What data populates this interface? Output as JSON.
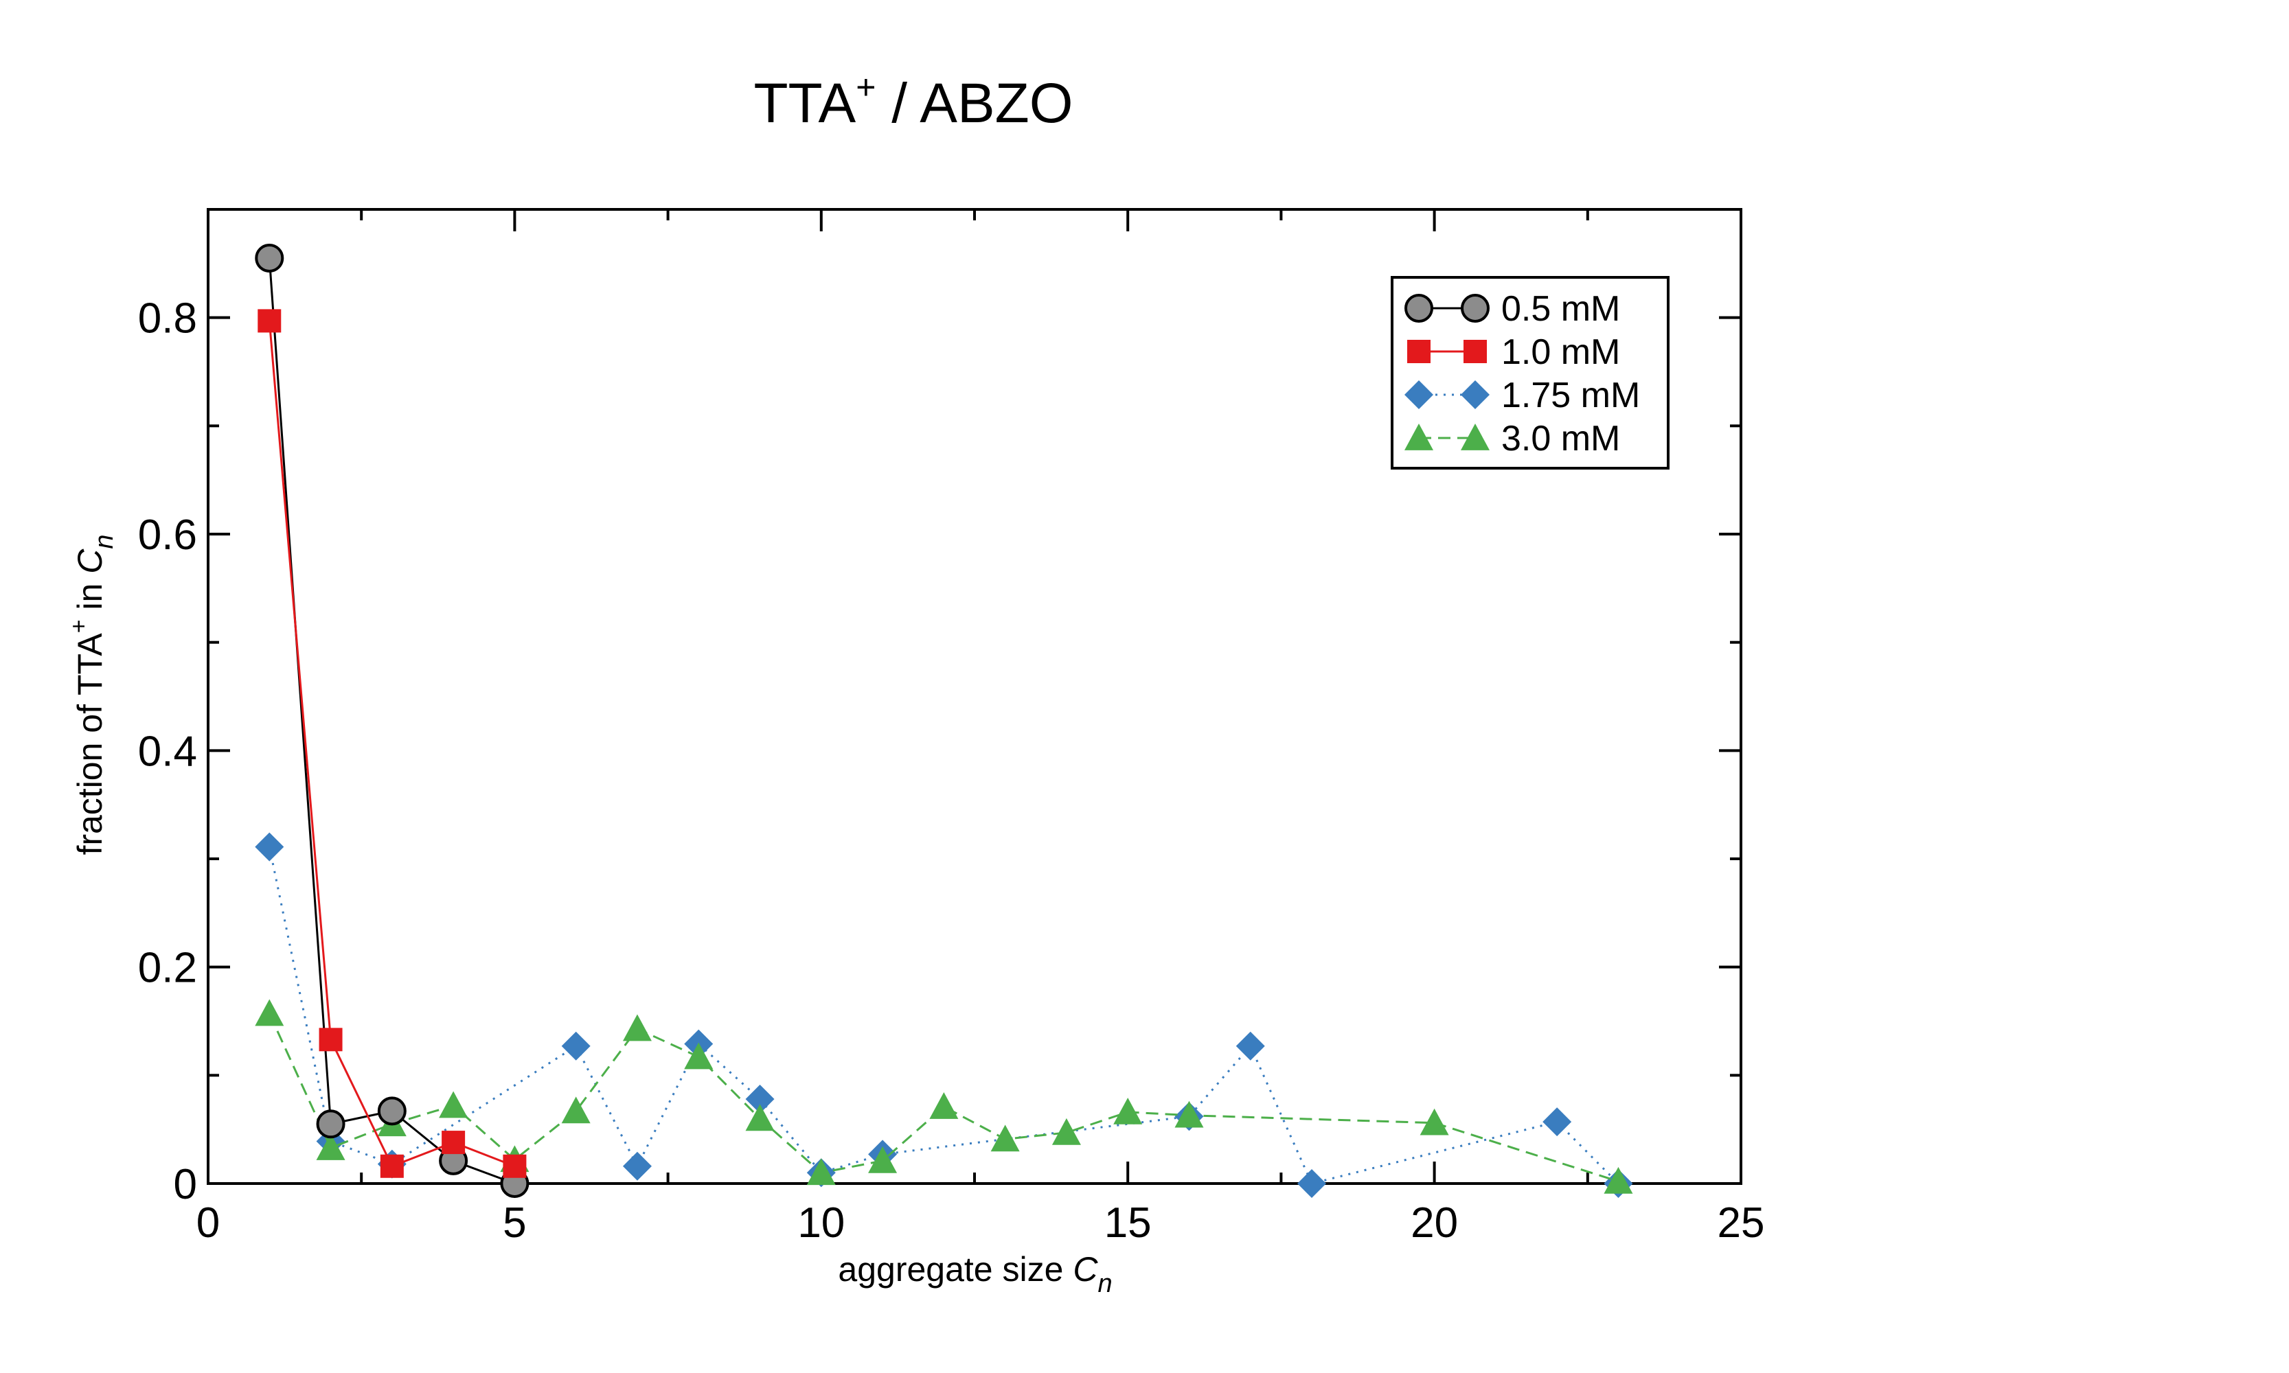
{
  "chart_data": {
    "type": "line",
    "title": "TTA",
    "title_sup": "+",
    "title_suffix": " / ABZO",
    "xlabel": "aggregate size ",
    "xlabel_var": "C",
    "xlabel_sub": "n",
    "ylabel": "fraction of TTA",
    "ylabel_sup": "+",
    "ylabel_mid": " in ",
    "ylabel_var": "C",
    "ylabel_sub": "n",
    "xlim": [
      0,
      25
    ],
    "ylim": [
      0,
      0.9
    ],
    "xticks": [
      0,
      5,
      10,
      15,
      20,
      25
    ],
    "xtick_labels": [
      "0",
      "5",
      "10",
      "15",
      "20",
      "25"
    ],
    "yticks": [
      0,
      0.2,
      0.4,
      0.6,
      0.8
    ],
    "ytick_labels": [
      "0",
      "0.2",
      "0.4",
      "0.6",
      "0.8"
    ],
    "legend_position": "top-right",
    "series": [
      {
        "name": "0.5 mM",
        "color": "#8c8c8c",
        "line_color": "#000000",
        "marker": "circle",
        "line_style": "solid",
        "x": [
          1,
          2,
          3,
          4,
          5
        ],
        "y": [
          0.855,
          0.055,
          0.067,
          0.021,
          0.0
        ]
      },
      {
        "name": "1.0 mM",
        "color": "#e3191c",
        "line_color": "#e3191c",
        "marker": "square",
        "line_style": "solid",
        "x": [
          1,
          2,
          3,
          4,
          5
        ],
        "y": [
          0.797,
          0.133,
          0.016,
          0.038,
          0.016
        ]
      },
      {
        "name": "1.75 mM",
        "color": "#3a7dbf",
        "line_color": "#3a7dbf",
        "marker": "diamond",
        "line_style": "dotted",
        "x": [
          1,
          2,
          3,
          6,
          7,
          8,
          9,
          10,
          11,
          16,
          17,
          18,
          22,
          23
        ],
        "y": [
          0.311,
          0.039,
          0.018,
          0.127,
          0.016,
          0.129,
          0.078,
          0.01,
          0.027,
          0.062,
          0.127,
          0.0,
          0.057,
          0.0
        ]
      },
      {
        "name": "3.0 mM",
        "color": "#4caf4a",
        "line_color": "#4caf4a",
        "marker": "triangle",
        "line_style": "dashed",
        "x": [
          1,
          2,
          3,
          4,
          5,
          6,
          7,
          8,
          9,
          10,
          11,
          12,
          13,
          14,
          15,
          16,
          20,
          23
        ],
        "y": [
          0.157,
          0.033,
          0.055,
          0.072,
          0.022,
          0.067,
          0.143,
          0.117,
          0.06,
          0.01,
          0.021,
          0.071,
          0.041,
          0.047,
          0.066,
          0.063,
          0.056,
          0.002
        ]
      }
    ]
  }
}
